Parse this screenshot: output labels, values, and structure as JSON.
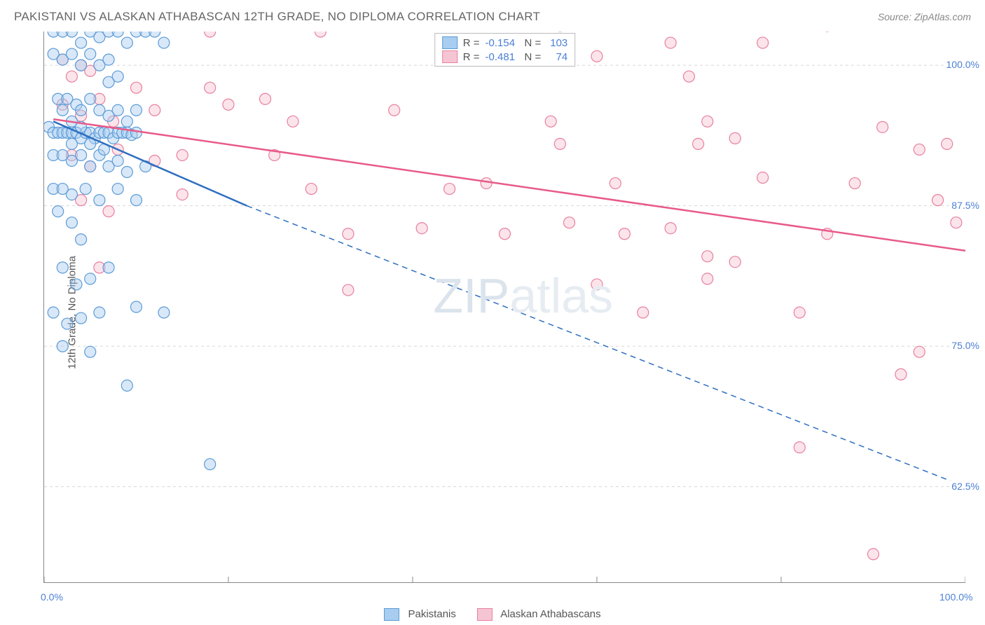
{
  "title": "PAKISTANI VS ALASKAN ATHABASCAN 12TH GRADE, NO DIPLOMA CORRELATION CHART",
  "source": "Source: ZipAtlas.com",
  "watermark": {
    "a": "ZIP",
    "b": "atlas"
  },
  "ylabel": "12th Grade, No Diploma",
  "chart": {
    "type": "scatter",
    "background_color": "#ffffff",
    "grid_color": "#d8d8d8",
    "grid_dash": "4,4",
    "axis_color": "#888888",
    "xlim": [
      0,
      100
    ],
    "ylim": [
      54,
      103
    ],
    "ytick_values": [
      62.5,
      75.0,
      87.5,
      100.0
    ],
    "ytick_labels": [
      "62.5%",
      "75.0%",
      "87.5%",
      "100.0%"
    ],
    "xtick_values": [
      0,
      20,
      40,
      60,
      80,
      100
    ],
    "xtick_labels": [
      "0.0%",
      "",
      "",
      "",
      "",
      "100.0%"
    ],
    "marker_radius": 8,
    "marker_opacity": 0.45,
    "line_width": 2.5,
    "series": [
      {
        "name": "Pakistanis",
        "color_fill": "#a8cdf0",
        "color_stroke": "#5c9bd6",
        "line_color": "#2e6fc0",
        "r_value": "-0.154",
        "n_value": "103",
        "regression": {
          "solid": {
            "x1": 1,
            "y1": 95,
            "x2": 22,
            "y2": 87.5
          },
          "dashed": {
            "x1": 22,
            "y1": 87.5,
            "x2": 100,
            "y2": 62.5
          }
        },
        "points": [
          [
            1,
            103
          ],
          [
            2,
            103
          ],
          [
            3,
            103
          ],
          [
            4,
            102
          ],
          [
            5,
            103
          ],
          [
            6,
            102.5
          ],
          [
            7,
            103
          ],
          [
            8,
            103
          ],
          [
            9,
            102
          ],
          [
            10,
            103
          ],
          [
            11,
            103
          ],
          [
            12,
            103
          ],
          [
            13,
            102
          ],
          [
            1,
            101
          ],
          [
            2,
            100.5
          ],
          [
            3,
            101
          ],
          [
            4,
            100
          ],
          [
            5,
            101
          ],
          [
            6,
            100
          ],
          [
            7,
            100.5
          ],
          [
            8,
            99
          ],
          [
            7,
            98.5
          ],
          [
            1.5,
            97
          ],
          [
            2.5,
            97
          ],
          [
            3.5,
            96.5
          ],
          [
            4,
            96
          ],
          [
            5,
            97
          ],
          [
            6,
            96
          ],
          [
            7,
            95.5
          ],
          [
            8,
            96
          ],
          [
            9,
            95
          ],
          [
            10,
            96
          ],
          [
            0.5,
            94.5
          ],
          [
            1,
            94
          ],
          [
            1.5,
            94
          ],
          [
            2,
            94
          ],
          [
            2.5,
            94
          ],
          [
            3,
            94
          ],
          [
            3.5,
            94
          ],
          [
            4,
            93.5
          ],
          [
            4.5,
            94
          ],
          [
            5,
            94
          ],
          [
            5.5,
            93.5
          ],
          [
            6,
            94
          ],
          [
            6.5,
            94
          ],
          [
            7,
            94
          ],
          [
            7.5,
            93.5
          ],
          [
            8,
            94
          ],
          [
            8.5,
            94
          ],
          [
            9,
            94
          ],
          [
            9.5,
            93.8
          ],
          [
            10,
            94
          ],
          [
            1,
            92
          ],
          [
            2,
            92
          ],
          [
            3,
            91.5
          ],
          [
            4,
            92
          ],
          [
            5,
            91
          ],
          [
            6,
            92
          ],
          [
            7,
            91
          ],
          [
            8,
            91.5
          ],
          [
            9,
            90.5
          ],
          [
            11,
            91
          ],
          [
            1,
            89
          ],
          [
            2,
            89
          ],
          [
            3,
            88.5
          ],
          [
            4.5,
            89
          ],
          [
            6,
            88
          ],
          [
            8,
            89
          ],
          [
            10,
            88
          ],
          [
            2,
            96
          ],
          [
            3,
            95
          ],
          [
            4,
            94.5
          ],
          [
            3,
            93
          ],
          [
            5,
            93
          ],
          [
            6.5,
            92.5
          ],
          [
            1.5,
            87
          ],
          [
            3,
            86
          ],
          [
            4,
            84.5
          ],
          [
            2,
            82
          ],
          [
            3.5,
            80.5
          ],
          [
            5,
            81
          ],
          [
            7,
            82
          ],
          [
            1,
            78
          ],
          [
            2.5,
            77
          ],
          [
            4,
            77.5
          ],
          [
            6,
            78
          ],
          [
            10,
            78.5
          ],
          [
            13,
            78
          ],
          [
            2,
            75
          ],
          [
            5,
            74.5
          ],
          [
            9,
            71.5
          ],
          [
            18,
            64.5
          ]
        ]
      },
      {
        "name": "Alaskan Athabascans",
        "color_fill": "#f6c5d3",
        "color_stroke": "#e87fa0",
        "line_color": "#e85a8a",
        "r_value": "-0.481",
        "n_value": "74",
        "regression": {
          "solid": {
            "x1": 1,
            "y1": 95.2,
            "x2": 100,
            "y2": 83.5
          }
        },
        "points": [
          [
            2,
            100.5
          ],
          [
            3,
            99
          ],
          [
            4,
            100
          ],
          [
            5,
            99.5
          ],
          [
            18,
            103
          ],
          [
            30,
            103
          ],
          [
            56,
            103.5
          ],
          [
            60,
            100.8
          ],
          [
            68,
            102
          ],
          [
            70,
            99
          ],
          [
            78,
            102
          ],
          [
            85,
            103.5
          ],
          [
            2,
            96.5
          ],
          [
            4,
            95.5
          ],
          [
            6,
            97
          ],
          [
            7.5,
            95
          ],
          [
            10,
            98
          ],
          [
            12,
            96
          ],
          [
            18,
            98
          ],
          [
            20,
            96.5
          ],
          [
            24,
            97
          ],
          [
            27,
            95
          ],
          [
            38,
            96
          ],
          [
            55,
            95
          ],
          [
            56,
            93
          ],
          [
            71,
            93
          ],
          [
            72,
            95
          ],
          [
            75,
            93.5
          ],
          [
            91,
            94.5
          ],
          [
            95,
            92.5
          ],
          [
            98,
            93
          ],
          [
            3,
            92
          ],
          [
            5,
            91
          ],
          [
            8,
            92.5
          ],
          [
            12,
            91.5
          ],
          [
            15,
            92
          ],
          [
            25,
            92
          ],
          [
            29,
            89
          ],
          [
            44,
            89
          ],
          [
            48,
            89.5
          ],
          [
            62,
            89.5
          ],
          [
            78,
            90
          ],
          [
            88,
            89.5
          ],
          [
            97,
            88
          ],
          [
            4,
            88
          ],
          [
            7,
            87
          ],
          [
            15,
            88.5
          ],
          [
            33,
            85
          ],
          [
            41,
            85.5
          ],
          [
            50,
            85
          ],
          [
            57,
            86
          ],
          [
            63,
            85
          ],
          [
            68,
            85.5
          ],
          [
            72,
            83
          ],
          [
            75,
            82.5
          ],
          [
            85,
            85
          ],
          [
            99,
            86
          ],
          [
            6,
            82
          ],
          [
            33,
            80
          ],
          [
            60,
            80.5
          ],
          [
            72,
            81
          ],
          [
            65,
            78
          ],
          [
            82,
            78
          ],
          [
            95,
            74.5
          ],
          [
            93,
            72.5
          ],
          [
            82,
            66
          ],
          [
            90,
            56.5
          ]
        ]
      }
    ]
  },
  "bottom_legend": [
    {
      "label": "Pakistanis",
      "fill": "#a8cdf0",
      "stroke": "#5c9bd6"
    },
    {
      "label": "Alaskan Athabascans",
      "fill": "#f6c5d3",
      "stroke": "#e87fa0"
    }
  ]
}
